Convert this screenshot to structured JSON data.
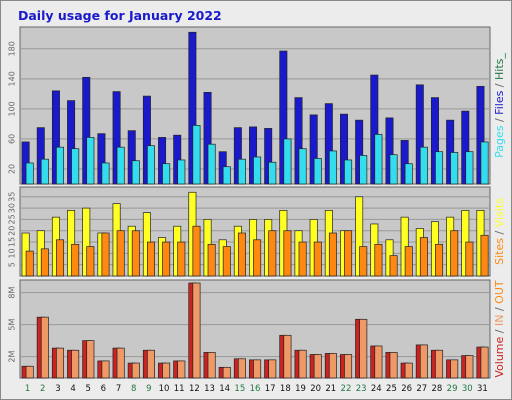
{
  "chart_data": {
    "type": "bar",
    "title": "Daily usage for January 2022",
    "days": [
      "1",
      "2",
      "3",
      "4",
      "5",
      "6",
      "7",
      "8",
      "9",
      "10",
      "11",
      "12",
      "13",
      "14",
      "15",
      "16",
      "17",
      "18",
      "19",
      "20",
      "21",
      "22",
      "23",
      "24",
      "25",
      "26",
      "27",
      "28",
      "29",
      "30",
      "31"
    ],
    "weekend_days": [
      "1",
      "2",
      "8",
      "9",
      "15",
      "16",
      "22",
      "23",
      "29",
      "30"
    ],
    "colors": {
      "hits": "#1a1acc",
      "files": "#33ddee",
      "pages": "#33ddee",
      "visits": "#ffff22",
      "sites": "#ff8811",
      "volume": "#cc2222",
      "in": "#ee9966",
      "out": "#ff8811",
      "weekday_label": "#111111",
      "weekend_label": "#227744",
      "plot_bg": "#c8c8c8"
    },
    "charts": [
      {
        "id": "pages-files-hits",
        "yticks": [
          20,
          60,
          100,
          140,
          180
        ],
        "tick_labels": [
          "20",
          "60",
          "100",
          "140",
          "180"
        ],
        "ymax": 205,
        "legend": [
          {
            "text": "Pages",
            "color": "#33ddee"
          },
          {
            "text": " / ",
            "color": "#666666"
          },
          {
            "text": "Files",
            "color": "#1a1acc"
          },
          {
            "text": " / ",
            "color": "#666666"
          },
          {
            "text": "Hits_",
            "color": "#227744"
          }
        ],
        "series": [
          {
            "name": "Hits",
            "key": "hits",
            "values": [
              56,
              75,
              124,
              111,
              142,
              67,
              123,
              71,
              117,
              62,
              65,
              202,
              122,
              43,
              75,
              76,
              74,
              177,
              115,
              92,
              107,
              93,
              85,
              145,
              88,
              58,
              132,
              115,
              85,
              97,
              130
            ]
          },
          {
            "name": "Files",
            "key": "files",
            "values": [
              28,
              33,
              49,
              47,
              62,
              28,
              49,
              31,
              51,
              27,
              32,
              78,
              53,
              23,
              33,
              36,
              29,
              60,
              47,
              34,
              44,
              32,
              38,
              66,
              39,
              27,
              49,
              43,
              42,
              43,
              56
            ]
          }
        ]
      },
      {
        "id": "visits-sites",
        "yticks": [
          5,
          10,
          15,
          20,
          25,
          30,
          35
        ],
        "tick_labels": [
          "5",
          "10",
          "15",
          "20",
          "25",
          "30",
          "35"
        ],
        "ymax": 38,
        "legend": [
          {
            "text": "Sites",
            "color": "#ff8811"
          },
          {
            "text": " / ",
            "color": "#666666"
          },
          {
            "text": "Visits",
            "color": "#ffff22"
          }
        ],
        "series": [
          {
            "name": "Visits",
            "key": "visits",
            "values": [
              19,
              20,
              26,
              29,
              30,
              19,
              32,
              22,
              28,
              17,
              22,
              37,
              25,
              16,
              22,
              25,
              25,
              29,
              20,
              25,
              29,
              20,
              35,
              23,
              16,
              26,
              21,
              24,
              26,
              29,
              29
            ]
          },
          {
            "name": "Sites",
            "key": "sites",
            "values": [
              11,
              12,
              16,
              14,
              13,
              19,
              20,
              20,
              15,
              15,
              15,
              22,
              14,
              13,
              19,
              16,
              20,
              20,
              15,
              15,
              19,
              20,
              13,
              14,
              9,
              13,
              17,
              14,
              20,
              15,
              18
            ]
          }
        ]
      },
      {
        "id": "volume",
        "yticks": [
          2,
          5,
          8
        ],
        "tick_labels": [
          "2M",
          "5M",
          "8M"
        ],
        "ymax": 8.9,
        "legend": [
          {
            "text": "Volume",
            "color": "#cc2222"
          },
          {
            "text": " / ",
            "color": "#666666"
          },
          {
            "text": "IN",
            "color": "#ee9966"
          },
          {
            "text": " / ",
            "color": "#666666"
          },
          {
            "text": "OUT",
            "color": "#ff8811"
          }
        ],
        "series": [
          {
            "name": "Volume",
            "key": "volume",
            "values": [
              1.1,
              5.7,
              2.8,
              2.6,
              3.5,
              1.6,
              2.8,
              1.4,
              2.6,
              1.4,
              1.6,
              8.9,
              2.4,
              1.0,
              1.8,
              1.7,
              1.7,
              4.0,
              2.6,
              2.2,
              2.3,
              2.2,
              5.5,
              3.0,
              2.4,
              1.4,
              3.1,
              2.6,
              1.7,
              2.1,
              2.9
            ]
          },
          {
            "name": "IN",
            "key": "in",
            "values": [
              1.1,
              5.7,
              2.8,
              2.6,
              3.5,
              1.6,
              2.8,
              1.4,
              2.6,
              1.4,
              1.6,
              8.9,
              2.4,
              1.0,
              1.8,
              1.7,
              1.7,
              4.0,
              2.6,
              2.2,
              2.3,
              2.2,
              5.5,
              3.0,
              2.4,
              1.4,
              3.1,
              2.6,
              1.7,
              2.1,
              2.9
            ]
          }
        ]
      }
    ]
  }
}
